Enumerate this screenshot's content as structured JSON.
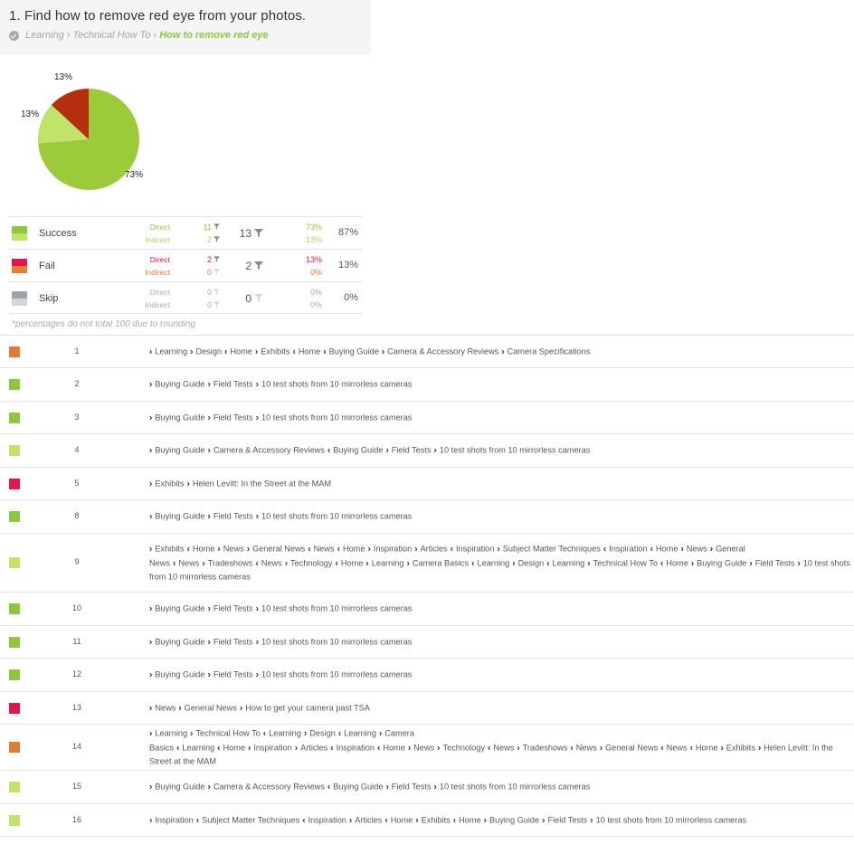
{
  "task": {
    "title": "1. Find how to remove red eye from your photos.",
    "breadcrumb": [
      "Learning",
      "Technical How To",
      "How to remove red eye"
    ],
    "check_icon": "check-circle-icon"
  },
  "chart_data": {
    "type": "pie",
    "slices": [
      {
        "label": "73%",
        "value": 73,
        "color": "#9bcb3b"
      },
      {
        "label": "13%",
        "value": 13,
        "color": "#c0e36a"
      },
      {
        "label": "13%",
        "value": 13,
        "color": "#b52e0d"
      }
    ],
    "title": "",
    "legend": "none"
  },
  "summary": [
    {
      "label": "Success",
      "colors": [
        "#8dc63f",
        "#c1e36a"
      ],
      "direct_label": "Direct",
      "indirect_label": "Indirect",
      "direct_count": "11",
      "indirect_count": "2",
      "total_count": "13",
      "direct_pct": "73%",
      "indirect_pct": "13%",
      "total_pct": "87%",
      "direct_color": "#8dc63f",
      "indirect_color": "#a9d65a",
      "filter_color": "#888"
    },
    {
      "label": "Fail",
      "colors": [
        "#e0194a",
        "#e67e3a"
      ],
      "direct_label": "Direct",
      "indirect_label": "Indirect",
      "direct_count": "2",
      "indirect_count": "0",
      "total_count": "2",
      "direct_pct": "13%",
      "indirect_pct": "0%",
      "total_pct": "13%",
      "direct_color": "#d9163f",
      "indirect_color": "#e07b3a",
      "filter_color": "#888"
    },
    {
      "label": "Skip",
      "colors": [
        "#9aa5ab",
        "#d0d6da"
      ],
      "direct_label": "Direct",
      "indirect_label": "Indirect",
      "direct_count": "0",
      "indirect_count": "0",
      "total_count": "0",
      "direct_pct": "0%",
      "indirect_pct": "0%",
      "total_pct": "0%",
      "direct_color": "#aaaaaa",
      "indirect_color": "#aaaaaa",
      "filter_color": "#d8d8d8"
    }
  ],
  "note": "*percentages do not total 100 due to rounding",
  "paths": [
    {
      "num": "1",
      "color": "#e07b3a",
      "steps": [
        [
          "›",
          "Learning"
        ],
        [
          "›",
          "Design"
        ],
        [
          "‹",
          "Home"
        ],
        [
          "›",
          "Exhibits"
        ],
        [
          "‹",
          "Home"
        ],
        [
          "›",
          "Buying Guide"
        ],
        [
          "›",
          "Camera & Accessory Reviews"
        ],
        [
          "›",
          "Camera Specifications"
        ]
      ]
    },
    {
      "num": "2",
      "color": "#8dc63f",
      "steps": [
        [
          "›",
          "Buying Guide"
        ],
        [
          "›",
          "Field Tests"
        ],
        [
          "›",
          "10 test shots from 10 mirrorless cameras"
        ]
      ]
    },
    {
      "num": "3",
      "color": "#8dc63f",
      "steps": [
        [
          "›",
          "Buying Guide"
        ],
        [
          "›",
          "Field Tests"
        ],
        [
          "›",
          "10 test shots from 10 mirrorless cameras"
        ]
      ]
    },
    {
      "num": "4",
      "color": "#c1e36a",
      "steps": [
        [
          "›",
          "Buying Guide"
        ],
        [
          "›",
          "Camera & Accessory Reviews"
        ],
        [
          "‹",
          "Buying Guide"
        ],
        [
          "›",
          "Field Tests"
        ],
        [
          "›",
          "10 test shots from 10 mirrorless cameras"
        ]
      ]
    },
    {
      "num": "5",
      "color": "#e0194a",
      "steps": [
        [
          "›",
          "Exhibits"
        ],
        [
          "›",
          "Helen Levitt: In the Street at the MAM"
        ]
      ]
    },
    {
      "num": "8",
      "color": "#8dc63f",
      "steps": [
        [
          "›",
          "Buying Guide"
        ],
        [
          "›",
          "Field Tests"
        ],
        [
          "›",
          "10 test shots from 10 mirrorless cameras"
        ]
      ]
    },
    {
      "num": "9",
      "color": "#c1e36a",
      "steps": [
        [
          "›",
          "Exhibits"
        ],
        [
          "‹",
          "Home"
        ],
        [
          "›",
          "News"
        ],
        [
          "›",
          "General News"
        ],
        [
          "‹",
          "News"
        ],
        [
          "‹",
          "Home"
        ],
        [
          "›",
          "Inspiration"
        ],
        [
          "›",
          "Articles"
        ],
        [
          "‹",
          "Inspiration"
        ],
        [
          "›",
          "Subject Matter Techniques"
        ],
        [
          "‹",
          "Inspiration"
        ],
        [
          "‹",
          "Home"
        ],
        [
          "›",
          "News"
        ],
        [
          "›",
          "General News"
        ],
        [
          "‹",
          "News"
        ],
        [
          "›",
          "Tradeshows"
        ],
        [
          "‹",
          "News"
        ],
        [
          "›",
          "Technology"
        ],
        [
          "‹",
          "Home"
        ],
        [
          "›",
          "Learning"
        ],
        [
          "›",
          "Camera Basics"
        ],
        [
          "‹",
          "Learning"
        ],
        [
          "›",
          "Design"
        ],
        [
          "‹",
          "Learning"
        ],
        [
          "›",
          "Technical How To"
        ],
        [
          "‹",
          "Home"
        ],
        [
          "›",
          "Buying Guide"
        ],
        [
          "›",
          "Field Tests"
        ],
        [
          "›",
          "10 test shots from 10 mirrorless cameras"
        ]
      ]
    },
    {
      "num": "10",
      "color": "#8dc63f",
      "steps": [
        [
          "›",
          "Buying Guide"
        ],
        [
          "›",
          "Field Tests"
        ],
        [
          "›",
          "10 test shots from 10 mirrorless cameras"
        ]
      ]
    },
    {
      "num": "11",
      "color": "#8dc63f",
      "steps": [
        [
          "›",
          "Buying Guide"
        ],
        [
          "›",
          "Field Tests"
        ],
        [
          "›",
          "10 test shots from 10 mirrorless cameras"
        ]
      ]
    },
    {
      "num": "12",
      "color": "#8dc63f",
      "steps": [
        [
          "›",
          "Buying Guide"
        ],
        [
          "›",
          "Field Tests"
        ],
        [
          "›",
          "10 test shots from 10 mirrorless cameras"
        ]
      ]
    },
    {
      "num": "13",
      "color": "#e0194a",
      "steps": [
        [
          "›",
          "News"
        ],
        [
          "›",
          "General News"
        ],
        [
          "›",
          "How to get your camera past TSA"
        ]
      ]
    },
    {
      "num": "14",
      "color": "#e07b3a",
      "steps": [
        [
          "›",
          "Learning"
        ],
        [
          "›",
          "Technical How To"
        ],
        [
          "‹",
          "Learning"
        ],
        [
          "›",
          "Design"
        ],
        [
          "‹",
          "Learning"
        ],
        [
          "›",
          "Camera Basics"
        ],
        [
          "‹",
          "Learning"
        ],
        [
          "‹",
          "Home"
        ],
        [
          "›",
          "Inspiration"
        ],
        [
          "›",
          "Articles"
        ],
        [
          "‹",
          "Inspiration"
        ],
        [
          "‹",
          "Home"
        ],
        [
          "›",
          "News"
        ],
        [
          "›",
          "Technology"
        ],
        [
          "‹",
          "News"
        ],
        [
          "›",
          "Tradeshows"
        ],
        [
          "‹",
          "News"
        ],
        [
          "›",
          "General News"
        ],
        [
          "‹",
          "News"
        ],
        [
          "‹",
          "Home"
        ],
        [
          "›",
          "Exhibits"
        ],
        [
          "›",
          "Helen Levitt: In the Street at the MAM"
        ]
      ]
    },
    {
      "num": "15",
      "color": "#c1e36a",
      "steps": [
        [
          "›",
          "Buying Guide"
        ],
        [
          "›",
          "Camera & Accessory Reviews"
        ],
        [
          "‹",
          "Buying Guide"
        ],
        [
          "›",
          "Field Tests"
        ],
        [
          "›",
          "10 test shots from 10 mirrorless cameras"
        ]
      ]
    },
    {
      "num": "16",
      "color": "#c1e36a",
      "steps": [
        [
          "›",
          "Inspiration"
        ],
        [
          "›",
          "Subject Matter Techniques"
        ],
        [
          "‹",
          "Inspiration"
        ],
        [
          "›",
          "Articles"
        ],
        [
          "‹",
          "Home"
        ],
        [
          "›",
          "Exhibits"
        ],
        [
          "‹",
          "Home"
        ],
        [
          "›",
          "Buying Guide"
        ],
        [
          "›",
          "Field Tests"
        ],
        [
          "›",
          "10 test shots from 10 mirrorless cameras"
        ]
      ]
    }
  ]
}
